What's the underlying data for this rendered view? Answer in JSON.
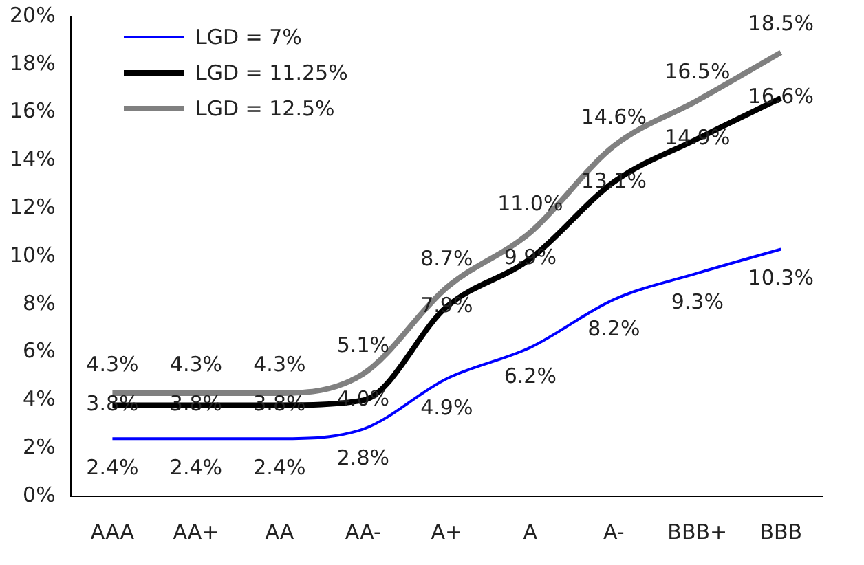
{
  "chart_data": {
    "type": "line",
    "categories": [
      "AAA",
      "AA+",
      "AA",
      "AA-",
      "A+",
      "A",
      "A-",
      "BBB+",
      "BBB"
    ],
    "series": [
      {
        "name": "LGD = 7%",
        "color": "#0000ff",
        "values": [
          2.4,
          2.4,
          2.4,
          2.8,
          4.9,
          6.2,
          8.2,
          9.3,
          10.3
        ],
        "value_labels": [
          "2.4%",
          "2.4%",
          "2.4%",
          "2.8%",
          "4.9%",
          "6.2%",
          "8.2%",
          "9.3%",
          "10.3%"
        ]
      },
      {
        "name": "LGD = 11.25%",
        "color": "#000000",
        "values": [
          3.8,
          3.8,
          3.8,
          4.0,
          7.9,
          9.9,
          13.1,
          14.9,
          16.6
        ],
        "value_labels": [
          "3.8%",
          "3.8%",
          "3.8%",
          "4.0%",
          "7.9%",
          "9.9%",
          "13.1%",
          "14.9%",
          "16.6%"
        ]
      },
      {
        "name": "LGD = 12.5%",
        "color": "#808080",
        "values": [
          4.3,
          4.3,
          4.3,
          5.1,
          8.7,
          11.0,
          14.6,
          16.5,
          18.5
        ],
        "value_labels": [
          "4.3%",
          "4.3%",
          "4.3%",
          "5.1%",
          "8.7%",
          "11.0%",
          "14.6%",
          "16.5%",
          "18.5%"
        ]
      }
    ],
    "ylim": [
      0,
      20
    ],
    "yticks": [
      {
        "value": 0,
        "label": "0%"
      },
      {
        "value": 2,
        "label": "2%"
      },
      {
        "value": 4,
        "label": "4%"
      },
      {
        "value": 6,
        "label": "6%"
      },
      {
        "value": 8,
        "label": "8%"
      },
      {
        "value": 10,
        "label": "10%"
      },
      {
        "value": 12,
        "label": "12%"
      },
      {
        "value": 14,
        "label": "14%"
      },
      {
        "value": 16,
        "label": "16%"
      },
      {
        "value": 18,
        "label": "18%"
      },
      {
        "value": 20,
        "label": "20%"
      }
    ],
    "grid": false,
    "legend": "top left",
    "marker": "none",
    "line_style": "solid"
  }
}
